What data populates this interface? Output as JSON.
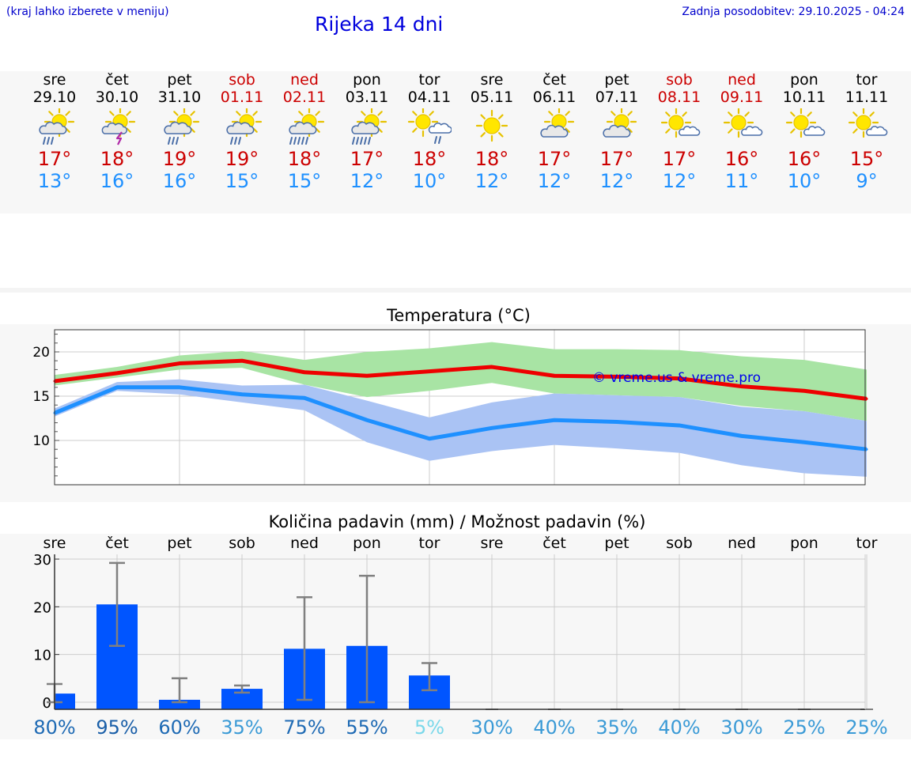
{
  "header": {
    "hint": "(kraj lahko izberete v meniju)",
    "title": "Rijeka 14 dni",
    "updated": "Zadnja posodobitev: 29.10.2025 - 04:24"
  },
  "days": [
    {
      "wd": "sre",
      "date": "29.10",
      "weekend": false,
      "icon": "partly-sunny-rain-icon",
      "tmax": "17°",
      "tmin": "13°"
    },
    {
      "wd": "čet",
      "date": "30.10",
      "weekend": false,
      "icon": "partly-sunny-thunderstorm-icon",
      "tmax": "18°",
      "tmin": "16°"
    },
    {
      "wd": "pet",
      "date": "31.10",
      "weekend": false,
      "icon": "partly-sunny-rain-icon",
      "tmax": "19°",
      "tmin": "16°"
    },
    {
      "wd": "sob",
      "date": "01.11",
      "weekend": true,
      "icon": "partly-sunny-rain-icon",
      "tmax": "19°",
      "tmin": "15°"
    },
    {
      "wd": "ned",
      "date": "02.11",
      "weekend": true,
      "icon": "partly-sunny-heavy-rain-icon",
      "tmax": "18°",
      "tmin": "15°"
    },
    {
      "wd": "pon",
      "date": "03.11",
      "weekend": false,
      "icon": "partly-sunny-heavy-rain-icon",
      "tmax": "17°",
      "tmin": "12°"
    },
    {
      "wd": "tor",
      "date": "04.11",
      "weekend": false,
      "icon": "sun-behind-rain-cloud-icon",
      "tmax": "18°",
      "tmin": "10°"
    },
    {
      "wd": "sre",
      "date": "05.11",
      "weekend": false,
      "icon": "sunny-icon",
      "tmax": "18°",
      "tmin": "12°"
    },
    {
      "wd": "čet",
      "date": "06.11",
      "weekend": false,
      "icon": "partly-cloudy-icon",
      "tmax": "17°",
      "tmin": "12°"
    },
    {
      "wd": "pet",
      "date": "07.11",
      "weekend": false,
      "icon": "partly-cloudy-icon",
      "tmax": "17°",
      "tmin": "12°"
    },
    {
      "wd": "sob",
      "date": "08.11",
      "weekend": true,
      "icon": "mostly-sunny-icon",
      "tmax": "17°",
      "tmin": "12°"
    },
    {
      "wd": "ned",
      "date": "09.11",
      "weekend": true,
      "icon": "mostly-sunny-icon",
      "tmax": "16°",
      "tmin": "11°"
    },
    {
      "wd": "pon",
      "date": "10.11",
      "weekend": false,
      "icon": "mostly-sunny-icon",
      "tmax": "16°",
      "tmin": "10°"
    },
    {
      "wd": "tor",
      "date": "11.11",
      "weekend": false,
      "icon": "mostly-sunny-icon",
      "tmax": "15°",
      "tmin": "9°"
    }
  ],
  "watermark": "© vreme.us & vreme.pro",
  "colors": {
    "max_line": "#ee0000",
    "min_line": "#1e90ff",
    "max_band": "#a8e4a4",
    "min_band": "#aac3f4",
    "overlap_band": "#7bbc9c",
    "bar": "#0055ff",
    "errorbar": "#808080",
    "weekend": "#cc0000"
  },
  "chart_data": [
    {
      "type": "line",
      "title": "Temperatura (°C)",
      "x": [
        0,
        1,
        2,
        3,
        4,
        5,
        6,
        7,
        8,
        9,
        10,
        11,
        12,
        13
      ],
      "ylim": [
        5,
        22.5
      ],
      "yticks": [
        10,
        15,
        20
      ],
      "series": [
        {
          "name": "max",
          "values": [
            16.7,
            17.6,
            18.7,
            19.0,
            17.7,
            17.3,
            17.8,
            18.3,
            17.3,
            17.2,
            17.0,
            16.1,
            15.6,
            14.7
          ],
          "band_low": [
            16.2,
            17.1,
            18.0,
            18.2,
            16.3,
            14.9,
            15.6,
            16.5,
            15.3,
            15.1,
            14.9,
            13.9,
            13.3,
            12.2
          ],
          "band_high": [
            17.4,
            18.3,
            19.6,
            20.1,
            19.1,
            20.0,
            20.4,
            21.1,
            20.3,
            20.3,
            20.2,
            19.5,
            19.1,
            18.0
          ]
        },
        {
          "name": "min",
          "values": [
            13.1,
            16.0,
            16.0,
            15.2,
            14.8,
            12.3,
            10.2,
            11.4,
            12.3,
            12.1,
            11.7,
            10.5,
            9.8,
            9.0
          ],
          "band_low": [
            12.7,
            15.6,
            15.2,
            14.3,
            13.4,
            9.8,
            7.7,
            8.8,
            9.5,
            9.1,
            8.6,
            7.2,
            6.3,
            5.9
          ],
          "band_high": [
            13.6,
            16.6,
            16.9,
            16.2,
            16.3,
            14.5,
            12.6,
            14.3,
            15.3,
            15.1,
            14.9,
            13.8,
            13.3,
            12.2
          ]
        }
      ]
    },
    {
      "type": "bar",
      "title": "Količina padavin (mm) / Možnost padavin (%)",
      "categories": [
        "sre",
        "čet",
        "pet",
        "sob",
        "ned",
        "pon",
        "tor",
        "sre",
        "čet",
        "pet",
        "sob",
        "ned",
        "pon",
        "tor"
      ],
      "values": [
        1.8,
        20.5,
        0.5,
        2.8,
        11.2,
        11.8,
        5.6,
        0,
        0,
        0,
        0,
        0,
        0,
        0
      ],
      "error_low": [
        0,
        11.8,
        0,
        2.0,
        0.5,
        0,
        2.5,
        0,
        0,
        0,
        0,
        0,
        0,
        0
      ],
      "error_high": [
        3.8,
        29.2,
        5.0,
        3.5,
        22.0,
        26.5,
        8.2,
        0,
        0,
        0,
        0,
        0,
        0,
        0
      ],
      "ylim": [
        -1.5,
        31
      ],
      "yticks": [
        0,
        10,
        20,
        30
      ],
      "probability_labels": [
        "80%",
        "95%",
        "60%",
        "35%",
        "75%",
        "55%",
        "5%",
        "30%",
        "40%",
        "35%",
        "40%",
        "30%",
        "25%",
        "25%"
      ],
      "probability_colors": [
        "#1e6ab4",
        "#1a5fa8",
        "#1e6ab4",
        "#3a9ad6",
        "#1e6ab4",
        "#1e6ab4",
        "#7ad8ea",
        "#3a9ad6",
        "#3a9ad6",
        "#3a9ad6",
        "#3a9ad6",
        "#3a9ad6",
        "#3a9ad6",
        "#3a9ad6"
      ]
    }
  ]
}
